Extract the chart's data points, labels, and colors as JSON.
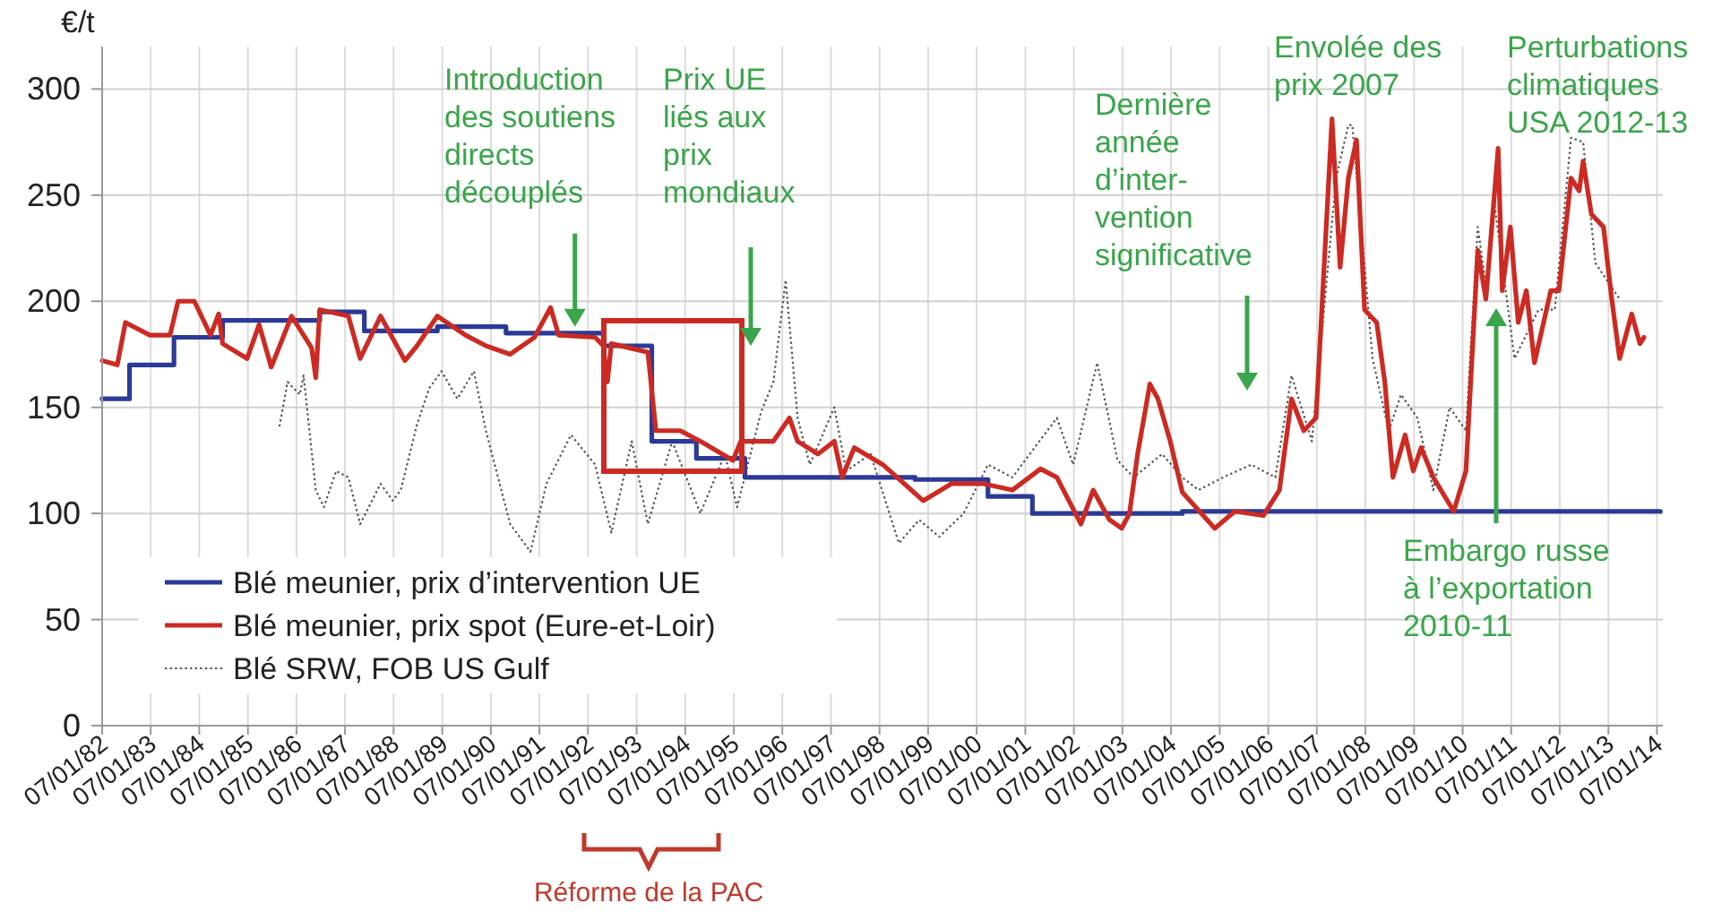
{
  "chart_data": {
    "type": "line",
    "ylabel": "€/t",
    "xlim": [
      "1982-01-07",
      "2014-02-20"
    ],
    "xticks": [
      {
        "value": "1982-01-07",
        "label": "07/01/82"
      },
      {
        "value": "1983-01-07",
        "label": "07/01/83"
      },
      {
        "value": "1984-01-07",
        "label": "07/01/84"
      },
      {
        "value": "1985-01-07",
        "label": "07/01/85"
      },
      {
        "value": "1986-01-07",
        "label": "07/01/86"
      },
      {
        "value": "1987-01-07",
        "label": "07/01/87"
      },
      {
        "value": "1988-01-07",
        "label": "07/01/88"
      },
      {
        "value": "1989-01-07",
        "label": "07/01/89"
      },
      {
        "value": "1990-01-07",
        "label": "07/01/90"
      },
      {
        "value": "1991-01-07",
        "label": "07/01/91"
      },
      {
        "value": "1992-01-07",
        "label": "07/01/92"
      },
      {
        "value": "1993-01-07",
        "label": "07/01/93"
      },
      {
        "value": "1994-01-07",
        "label": "07/01/94"
      },
      {
        "value": "1995-01-07",
        "label": "07/01/95"
      },
      {
        "value": "1996-01-07",
        "label": "07/01/96"
      },
      {
        "value": "1997-01-07",
        "label": "07/01/97"
      },
      {
        "value": "1998-01-07",
        "label": "07/01/98"
      },
      {
        "value": "1999-01-07",
        "label": "07/01/99"
      },
      {
        "value": "2000-01-07",
        "label": "07/01/00"
      },
      {
        "value": "2001-01-07",
        "label": "07/01/01"
      },
      {
        "value": "2002-01-07",
        "label": "07/01/02"
      },
      {
        "value": "2003-01-07",
        "label": "07/01/03"
      },
      {
        "value": "2004-01-07",
        "label": "07/01/04"
      },
      {
        "value": "2005-01-07",
        "label": "07/01/05"
      },
      {
        "value": "2006-01-07",
        "label": "07/01/06"
      },
      {
        "value": "2007-01-07",
        "label": "07/01/07"
      },
      {
        "value": "2008-01-07",
        "label": "07/01/08"
      },
      {
        "value": "2009-01-07",
        "label": "07/01/09"
      },
      {
        "value": "2010-01-07",
        "label": "07/01/10"
      },
      {
        "value": "2011-01-07",
        "label": "07/01/11"
      },
      {
        "value": "2012-01-07",
        "label": "07/01/12"
      },
      {
        "value": "2013-01-07",
        "label": "07/01/13"
      },
      {
        "value": "2014-01-07",
        "label": "07/01/14"
      }
    ],
    "ylim": [
      0,
      320
    ],
    "yticks": [
      0,
      50,
      100,
      150,
      200,
      250,
      300
    ],
    "grid": true,
    "legend": "bottom left",
    "series": [
      {
        "name": "Blé meunier, prix d’intervention UE",
        "type": "step",
        "color": "#2b3a97",
        "line_style": "solid",
        "x": [
          "1982-01-07",
          "1982-08",
          "1983-07",
          "1984-07",
          "1986-07",
          "1987-06",
          "1988-12",
          "1990-05",
          "1992-05",
          "1993-05",
          "1994-04",
          "1995-04",
          "1998-10",
          "2000-04",
          "2001-03",
          "2004-04",
          "2014-02"
        ],
        "values": [
          154,
          170,
          183,
          191,
          195,
          186,
          188,
          185,
          179,
          134,
          126,
          117,
          116,
          108,
          100,
          101,
          101
        ]
      },
      {
        "name": "Blé meunier, prix spot (Eure-et-Loir)",
        "color": "#cc2a22",
        "line_style": "solid",
        "x": [
          "1982-01-07",
          "1982-05",
          "1982-07",
          "1983-01",
          "1983-06",
          "1983-08",
          "1983-12",
          "1984-04",
          "1984-06",
          "1984-07",
          "1985-01",
          "1985-04",
          "1985-07",
          "1985-12",
          "1986-05",
          "1986-06",
          "1986-07",
          "1987-02",
          "1987-05",
          "1987-10",
          "1988-04",
          "1988-07",
          "1988-12",
          "1989-07",
          "1989-12",
          "1990-06",
          "1990-12",
          "1991-04",
          "1991-06",
          "1992-03",
          "1992-05",
          "1992-06",
          "1992-07",
          "1993-04",
          "1993-06",
          "1993-12",
          "1994-05",
          "1995-01",
          "1995-03",
          "1995-11",
          "1996-03",
          "1996-05",
          "1996-10",
          "1997-02",
          "1997-04",
          "1997-07",
          "1998-02",
          "1998-12",
          "1999-07",
          "2000-03",
          "2000-10",
          "2001-05",
          "2001-09",
          "2002-03",
          "2002-06",
          "2002-10",
          "2003-01",
          "2003-03",
          "2003-05",
          "2003-08",
          "2003-10",
          "2004-01",
          "2004-04",
          "2004-12",
          "2005-05",
          "2005-12",
          "2006-04",
          "2006-07",
          "2006-10",
          "2007-01",
          "2007-05",
          "2007-07",
          "2007-09",
          "2007-11",
          "2008-01",
          "2008-04",
          "2008-06",
          "2008-08",
          "2008-11",
          "2009-01",
          "2009-03",
          "2009-06",
          "2009-11",
          "2010-02",
          "2010-05",
          "2010-07",
          "2010-10",
          "2010-11",
          "2011-01",
          "2011-03",
          "2011-05",
          "2011-07",
          "2011-11",
          "2012-01",
          "2012-04",
          "2012-06",
          "2012-07",
          "2012-09",
          "2012-12",
          "2013-02",
          "2013-04",
          "2013-07",
          "2013-09",
          "2013-10"
        ],
        "values": [
          172,
          170,
          190,
          184,
          184,
          200,
          200,
          184,
          194,
          180,
          173,
          189,
          169,
          193,
          178,
          164,
          196,
          193,
          173,
          193,
          172,
          179,
          193,
          184,
          179,
          175,
          183,
          197,
          184,
          183,
          179,
          162,
          180,
          176,
          139,
          139,
          134,
          125,
          134,
          134,
          145,
          134,
          128,
          134,
          117,
          131,
          123,
          106,
          114,
          114,
          111,
          121,
          117,
          95,
          111,
          97,
          93,
          100,
          128,
          161,
          154,
          134,
          110,
          93,
          101,
          99,
          111,
          154,
          139,
          145,
          286,
          216,
          258,
          276,
          196,
          190,
          162,
          117,
          137,
          120,
          131,
          117,
          101,
          120,
          224,
          201,
          272,
          205,
          235,
          190,
          205,
          171,
          205,
          205,
          258,
          252,
          266,
          241,
          235,
          201,
          173,
          194,
          180,
          183
        ]
      },
      {
        "name": "Blé SRW, FOB US Gulf",
        "color": "#555555",
        "line_style": "dotted",
        "x": [
          "1985-09",
          "1985-11",
          "1986-02",
          "1986-03",
          "1986-06",
          "1986-08",
          "1986-11",
          "1987-02",
          "1987-05",
          "1987-10",
          "1988-01",
          "1988-03",
          "1988-07",
          "1988-10",
          "1989-01",
          "1989-05",
          "1989-09",
          "1989-12",
          "1990-06",
          "1990-11",
          "1991-03",
          "1991-09",
          "1992-03",
          "1992-07",
          "1992-12",
          "1993-04",
          "1993-10",
          "1994-05",
          "1994-11",
          "1995-02",
          "1995-08",
          "1995-11",
          "1996-02",
          "1996-05",
          "1996-08",
          "1997-02",
          "1997-05",
          "1997-11",
          "1998-06",
          "1998-11",
          "1999-04",
          "1999-10",
          "2000-04",
          "2000-10",
          "2001-09",
          "2002-01",
          "2002-07",
          "2002-12",
          "2003-04",
          "2003-11",
          "2004-04",
          "2004-08",
          "2005-02",
          "2005-09",
          "2006-03",
          "2006-07",
          "2006-12",
          "2007-06",
          "2007-09",
          "2007-10",
          "2008-03",
          "2008-07",
          "2008-10",
          "2009-02",
          "2009-06",
          "2009-10",
          "2010-02",
          "2010-05",
          "2010-07",
          "2010-09",
          "2011-02",
          "2011-08",
          "2011-12",
          "2012-04",
          "2012-07",
          "2012-10",
          "2013-04"
        ],
        "values": [
          141,
          162,
          156,
          165,
          111,
          103,
          120,
          117,
          95,
          114,
          106,
          111,
          142,
          159,
          167,
          154,
          167,
          139,
          95,
          82,
          114,
          137,
          123,
          91,
          134,
          95,
          134,
          100,
          128,
          103,
          148,
          162,
          210,
          145,
          123,
          150,
          120,
          128,
          86,
          97,
          89,
          100,
          123,
          117,
          145,
          123,
          171,
          125,
          117,
          128,
          117,
          111,
          117,
          123,
          117,
          165,
          134,
          258,
          283,
          283,
          173,
          139,
          156,
          145,
          111,
          150,
          139,
          235,
          207,
          247,
          173,
          196,
          196,
          277,
          275,
          218,
          201
        ]
      }
    ],
    "annotations": [
      {
        "text": "Introduction\ndes soutiens\ndirects\ndécouplés",
        "x": "1991-10",
        "y": 188
      },
      "Prix UE\nliés aux\nprix\nmondiaux",
      "Dernière\nannée\nd’inter-\nvention\nsignificative",
      "Envolée des\nprix 2007",
      "Perturbations\nclimatiques\nUSA 2012-13",
      "Embargo russe\nà l’exportation\n2010-11",
      "Réforme de la PAC"
    ]
  }
}
